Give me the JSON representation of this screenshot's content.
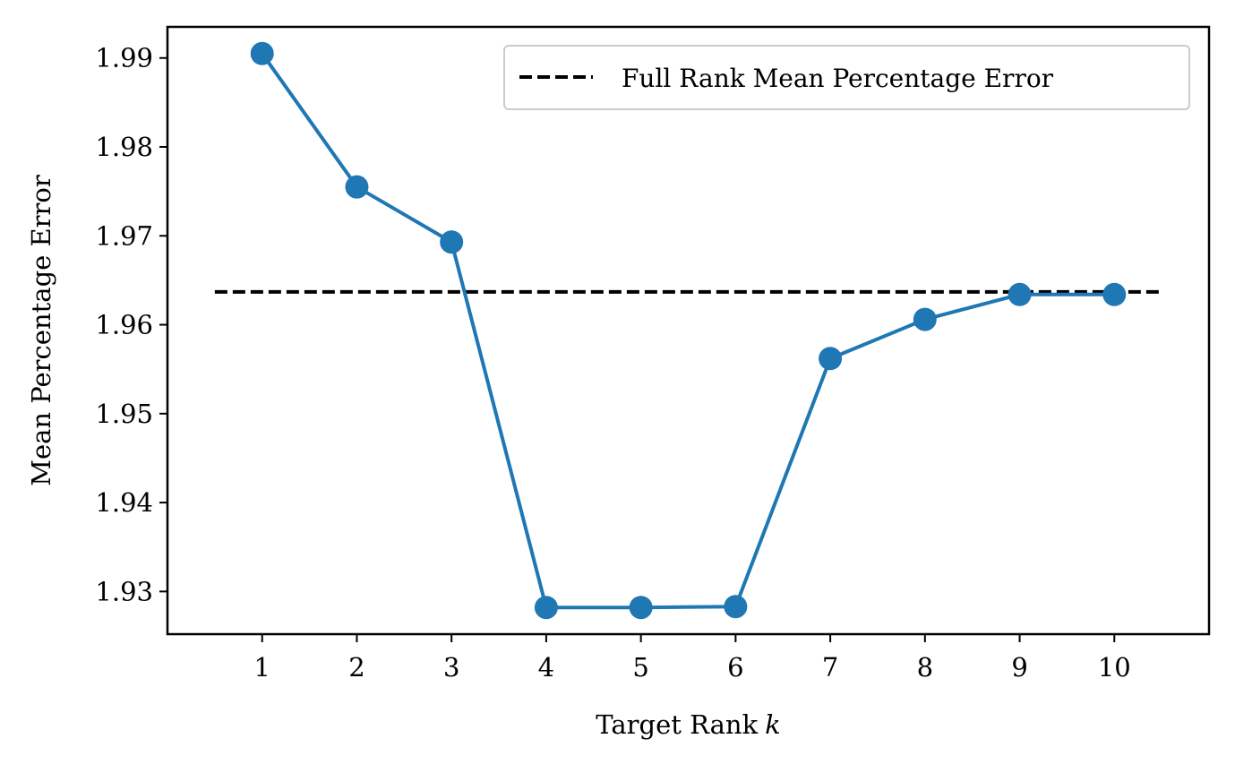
{
  "chart_data": {
    "type": "line",
    "title": "",
    "xlabel": "Target Rank",
    "xlabel_var": "k",
    "ylabel": "Mean Percentage Error",
    "x": [
      1,
      2,
      3,
      4,
      5,
      6,
      7,
      8,
      9,
      10
    ],
    "x_tick_labels": [
      "1",
      "2",
      "3",
      "4",
      "5",
      "6",
      "7",
      "8",
      "9",
      "10"
    ],
    "y_tick_values": [
      1.93,
      1.94,
      1.95,
      1.96,
      1.97,
      1.98,
      1.99
    ],
    "y_tick_labels": [
      "1.93",
      "1.94",
      "1.95",
      "1.96",
      "1.97",
      "1.98",
      "1.99"
    ],
    "xlim": [
      0,
      11
    ],
    "ylim": [
      1.9252,
      1.9935
    ],
    "series": [
      {
        "values": [
          1.9905,
          1.9755,
          1.9693,
          1.9282,
          1.9282,
          1.9283,
          1.9562,
          1.9606,
          1.9634,
          1.9634
        ],
        "color": "#1f77b4",
        "marker": "circle"
      }
    ],
    "reference_lines": [
      {
        "name": "Full Rank Mean Percentage Error",
        "value": 1.9637,
        "x_range": [
          0.5,
          10.5
        ],
        "color": "#000000",
        "style": "dashed"
      }
    ],
    "legend": {
      "placement": "top-right",
      "entries": [
        "Full Rank Mean Percentage Error"
      ]
    },
    "grid": false
  }
}
